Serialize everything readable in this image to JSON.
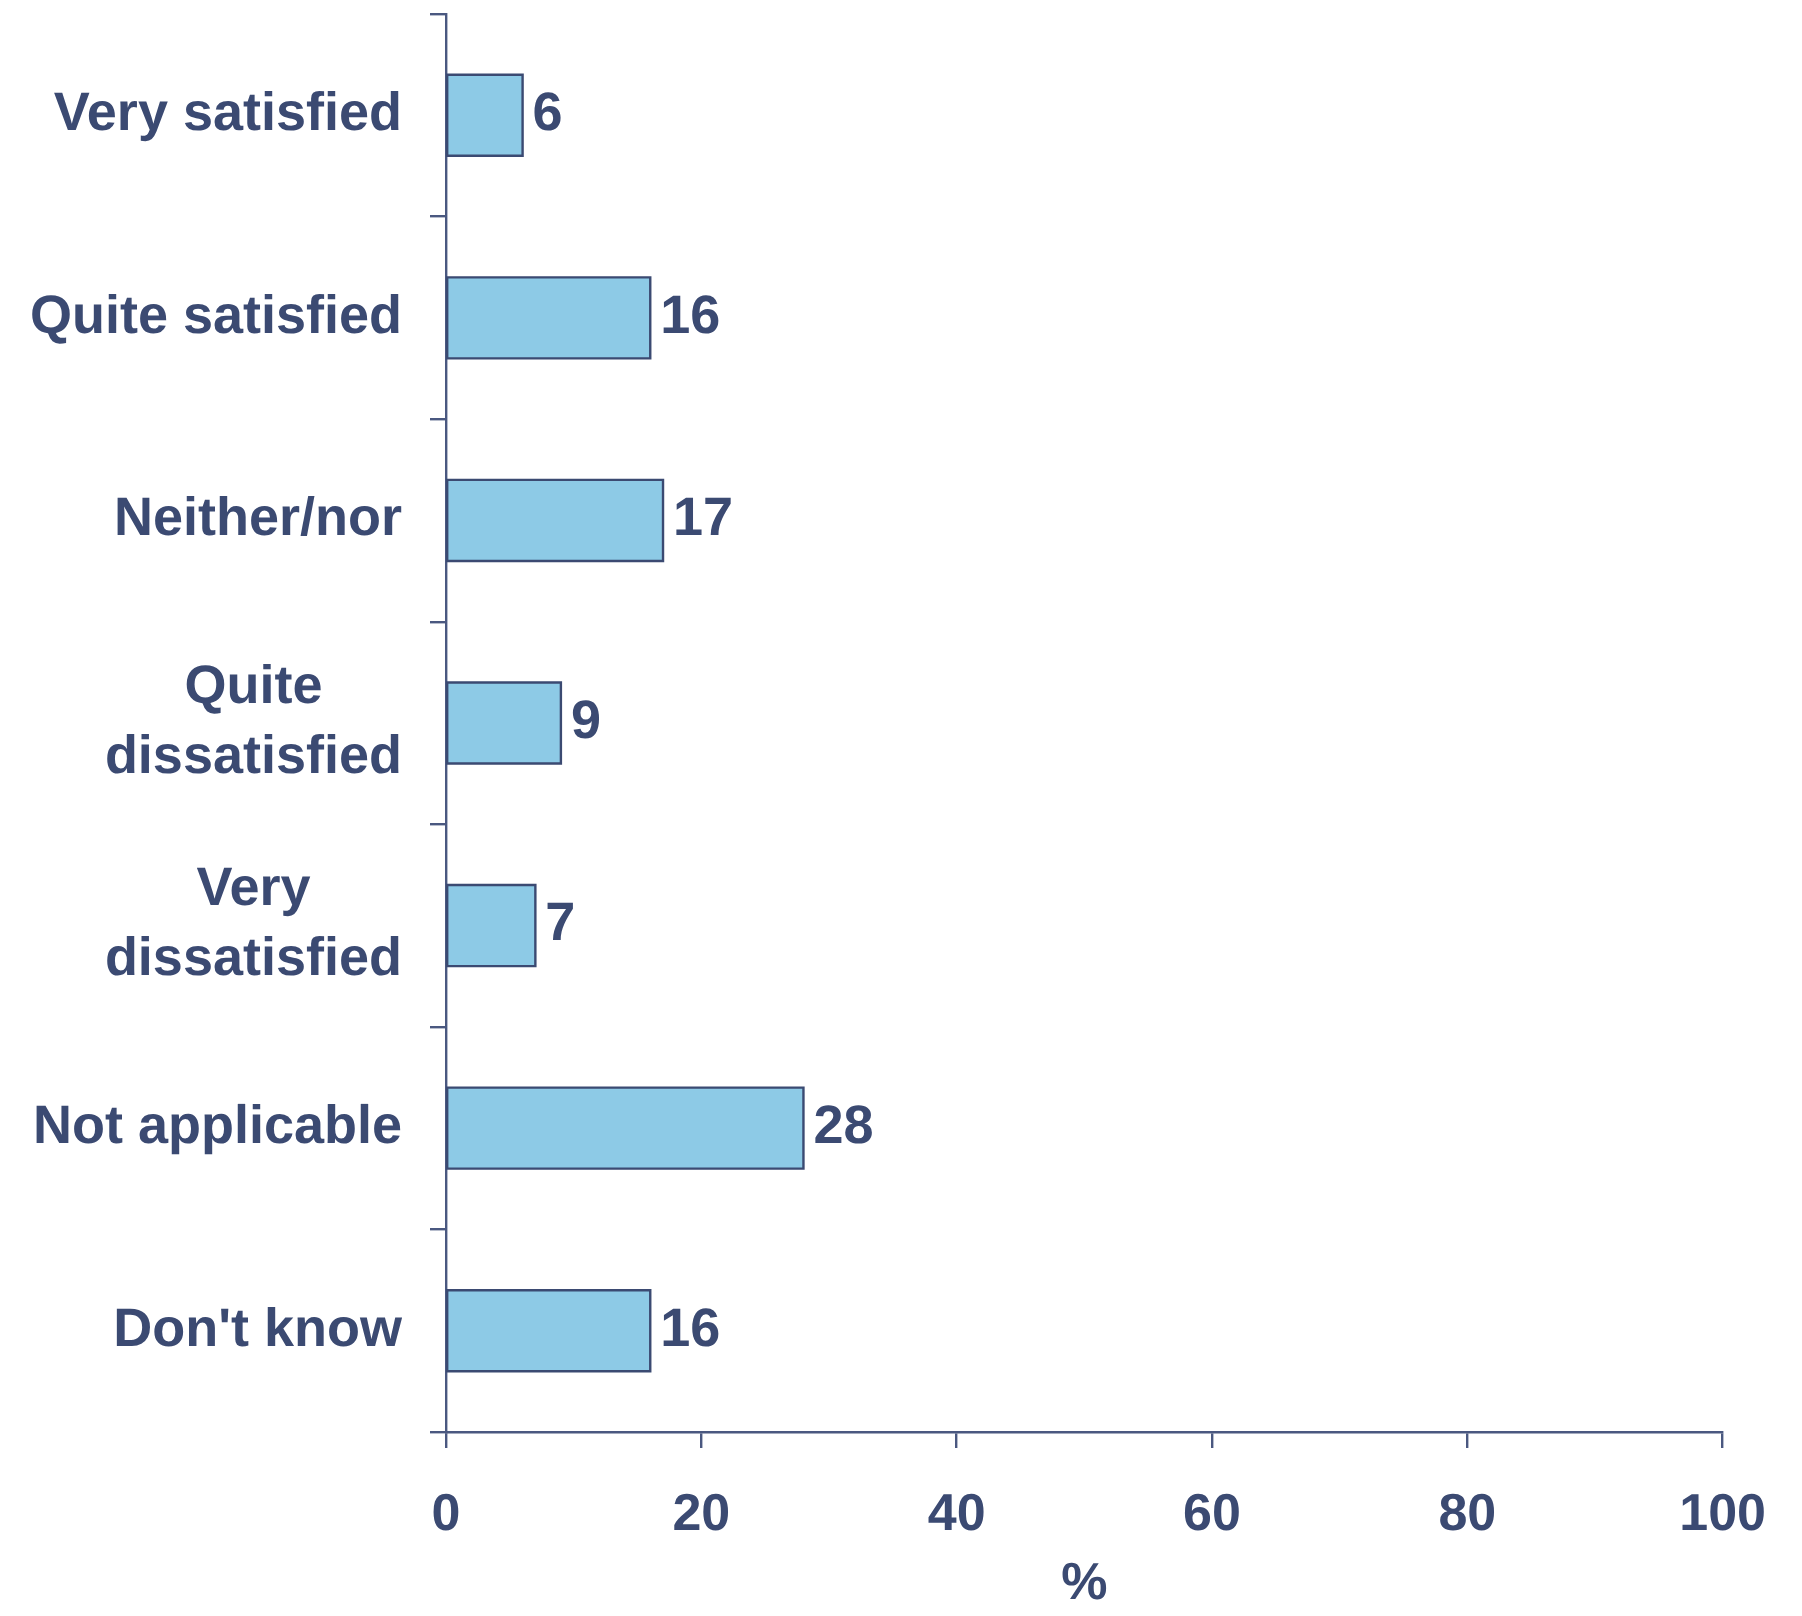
{
  "chart_data": {
    "type": "bar",
    "orientation": "horizontal",
    "categories": [
      "Very satisfied",
      "Quite satisfied",
      "Neither/nor",
      "Quite dissatisfied",
      "Very dissatisfied",
      "Not applicable",
      "Don't know"
    ],
    "values": [
      6,
      16,
      17,
      9,
      7,
      28,
      16
    ],
    "color": "#8dcae6",
    "data_labels": true,
    "xlabel": "%",
    "xlim": [
      0,
      100
    ],
    "xticks": [
      0,
      20,
      40,
      60,
      80,
      100
    ]
  }
}
